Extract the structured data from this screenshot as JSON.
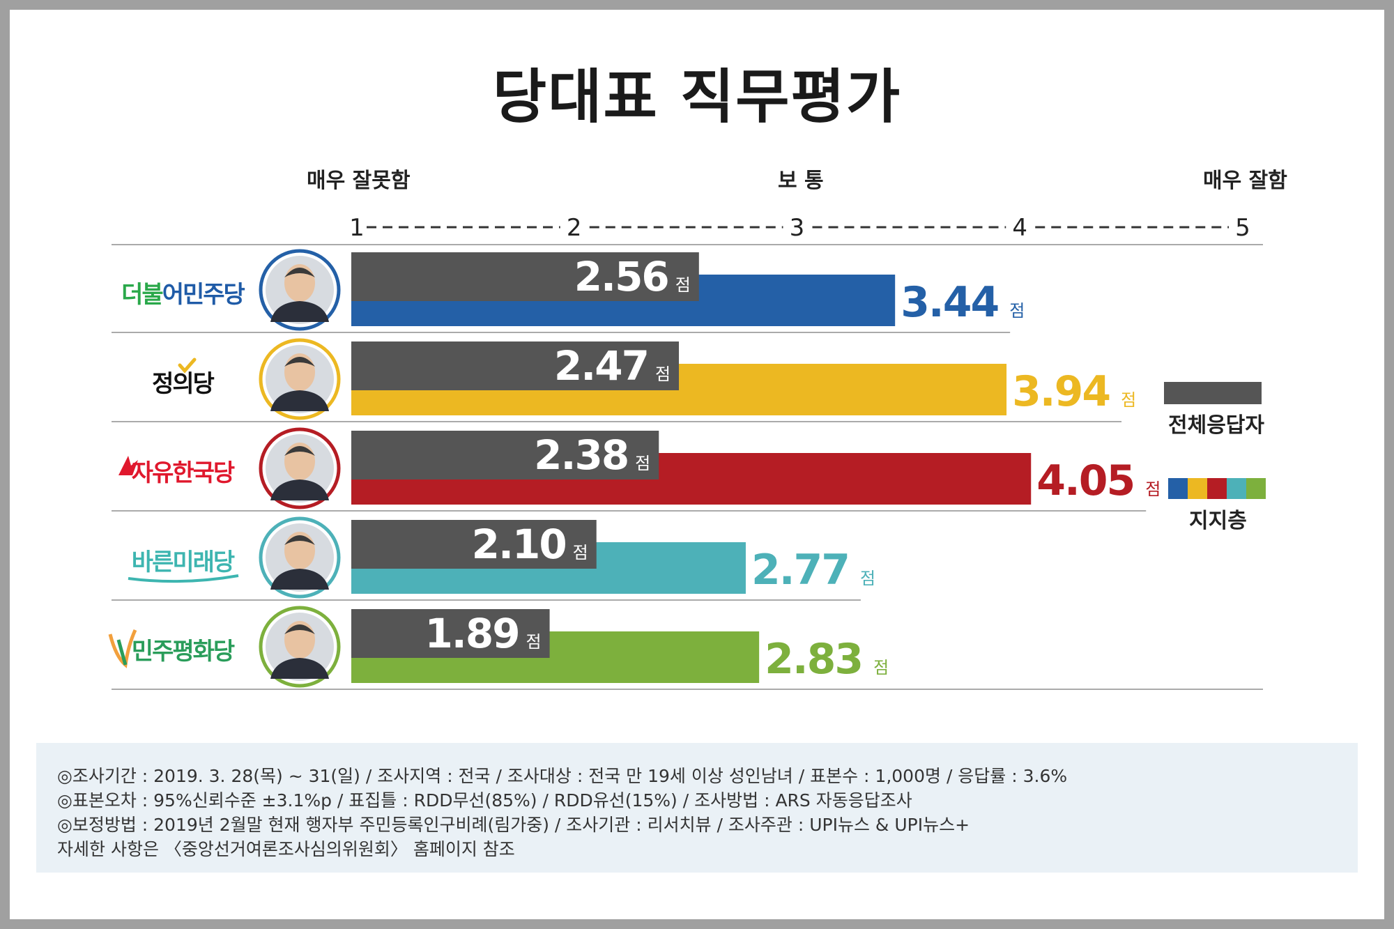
{
  "title": "당대표 직무평가",
  "scale": {
    "left_label": "매우 잘못함",
    "mid_label": "보 통",
    "right_label": "매우 잘함",
    "ticks": [
      "1",
      "2",
      "3",
      "4",
      "5"
    ]
  },
  "unit": "점",
  "legend": {
    "overall": "전체응답자",
    "supporters": "지지층"
  },
  "colors": {
    "overall": "#555555",
    "legend_strip": [
      "#2460a7",
      "#ecb822",
      "#b51d24",
      "#4db1b8",
      "#7db03d"
    ]
  },
  "chart_data": {
    "type": "bar",
    "title": "당대표 직무평가",
    "xlim": [
      1,
      5
    ],
    "x_ticks": [
      1,
      2,
      3,
      4,
      5
    ],
    "categories": [
      "더불어민주당",
      "정의당",
      "자유한국당",
      "바른미래당",
      "민주평화당"
    ],
    "series": [
      {
        "name": "전체응답자",
        "values": [
          2.56,
          2.47,
          2.38,
          2.1,
          1.89
        ]
      },
      {
        "name": "지지층",
        "values": [
          3.44,
          3.94,
          4.05,
          2.77,
          2.83
        ]
      }
    ],
    "labels": {
      "overall": [
        "2.56",
        "2.47",
        "2.38",
        "2.10",
        "1.89"
      ],
      "supporters": [
        "3.44",
        "3.94",
        "4.05",
        "2.77",
        "2.83"
      ]
    },
    "party_colors": [
      "#2460a7",
      "#ecb822",
      "#b51d24",
      "#4db1b8",
      "#7db03d"
    ],
    "party_logo_colors": [
      [
        "#2aa84a",
        "#1f5ba7"
      ],
      [
        "#111111",
        "#111111"
      ],
      [
        "#1e2d5c",
        "#e0182d"
      ],
      [
        "#1d4f91",
        "#3db5b0"
      ],
      [
        "#222222",
        "#2a9d5a"
      ]
    ]
  },
  "footer": {
    "line1": "◎조사기간 : 2019. 3. 28(목) ~ 31(일) / 조사지역 : 전국 / 조사대상 : 전국 만 19세 이상 성인남녀 / 표본수 : 1,000명 / 응답률 : 3.6%",
    "line2": "◎표본오차 : 95%신뢰수준 ±3.1%p  / 표집틀 : RDD무선(85%) / RDD유선(15%) / 조사방법 : ARS 자동응답조사",
    "line3": "◎보정방법 : 2019년 2월말 현재 행자부 주민등록인구비례(림가중) / 조사기관 : 리서치뷰 / 조사주관 : UPI뉴스 & UPI뉴스+",
    "line4": "자세한 사항은 〈중앙선거여론조사심의위원회〉 홈페이지 참조"
  }
}
